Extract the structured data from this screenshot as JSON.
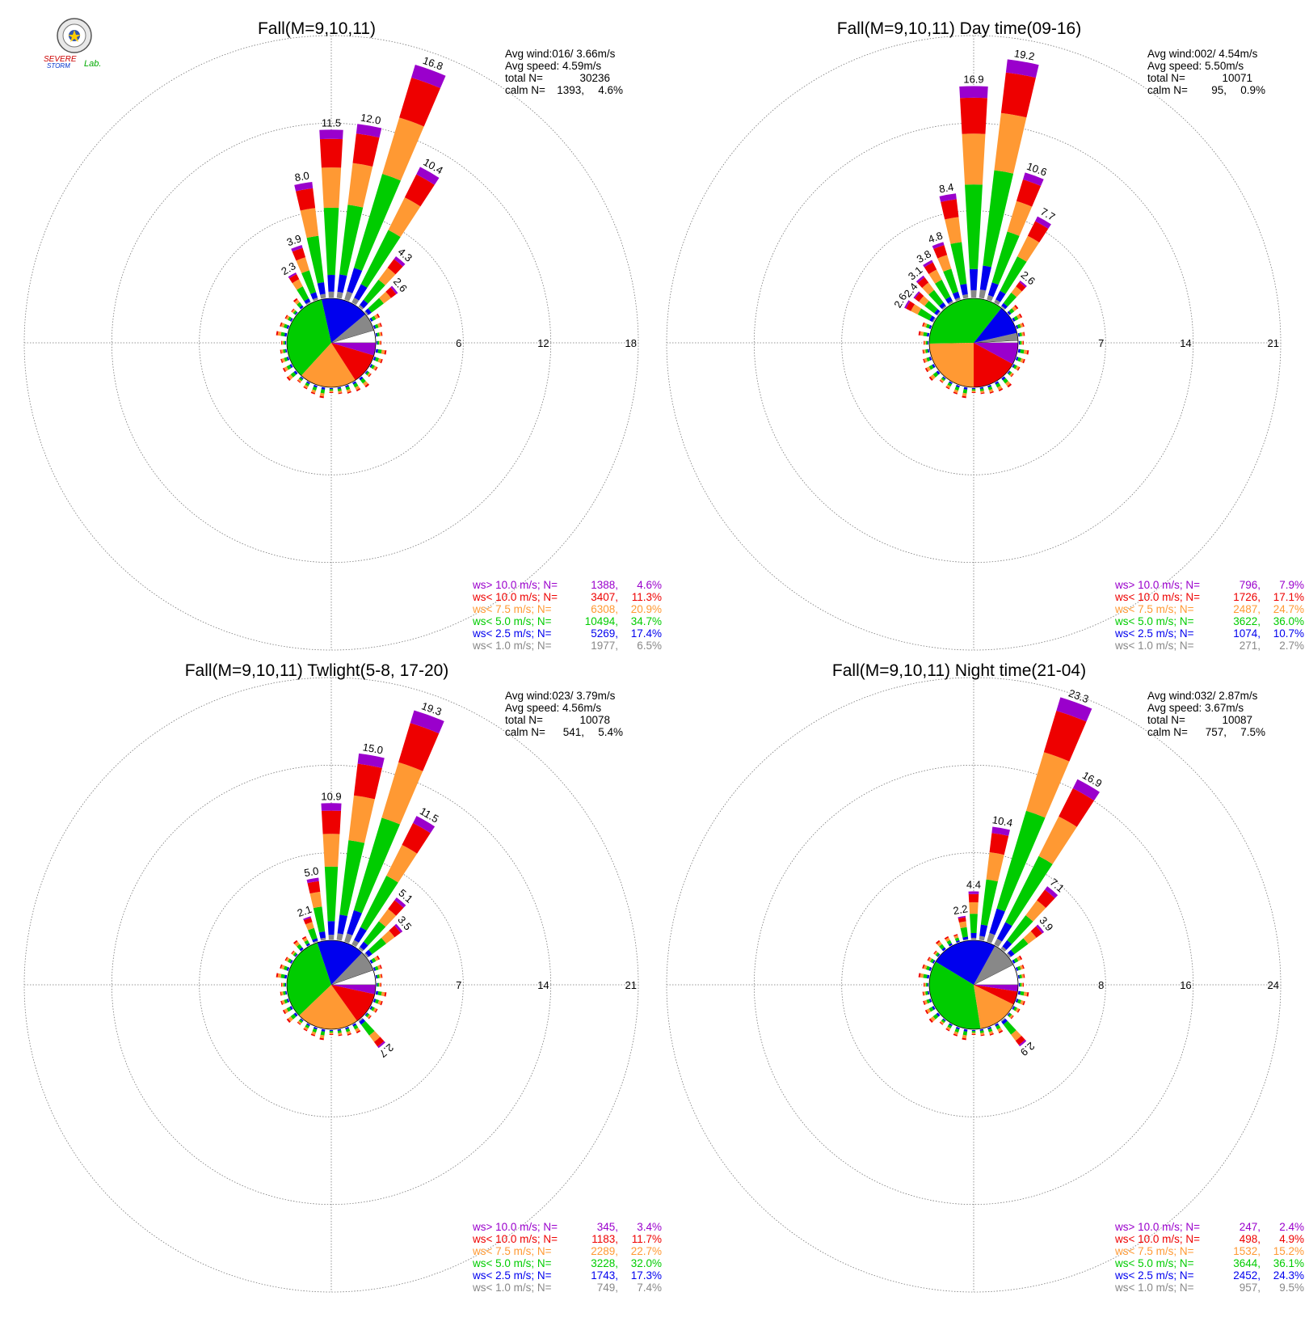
{
  "logo": {
    "text_top": "SEVERE",
    "text_mid": "STORM",
    "text_lab": "Lab."
  },
  "legend_labels": [
    "ws> 10.0 m/s; N=",
    "ws< 10.0 m/s; N=",
    "ws<  7.5 m/s; N=",
    "ws<  5.0 m/s; N=",
    "ws<  2.5 m/s; N=",
    "ws<  1.0 m/s; N="
  ],
  "bin_colors": [
    "#9a00cc",
    "#ee0000",
    "#ff9933",
    "#00cc00",
    "#0000ee",
    "#888888"
  ],
  "stat_labels": {
    "avg_wind": "Avg wind:",
    "avg_speed": "Avg speed:",
    "total": "total N=",
    "calm": "calm N="
  },
  "chart_data": [
    {
      "type": "polar-bar",
      "title": "Fall(M=9,10,11)",
      "rlim": [
        0,
        18
      ],
      "rings": [
        6,
        12,
        18
      ],
      "ring_labels": [
        "6",
        "12",
        "18"
      ],
      "stats": {
        "avg_wind": "016/ 3.66m/s",
        "avg_speed": "4.59m/s",
        "total_n": "30236",
        "calm_n": "1393,",
        "calm_pct": "4.6%"
      },
      "legend": [
        {
          "n": "1388,",
          "pct": "4.6%"
        },
        {
          "n": "3407,",
          "pct": "11.3%"
        },
        {
          "n": "6308,",
          "pct": "20.9%"
        },
        {
          "n": "10494,",
          "pct": "34.7%"
        },
        {
          "n": "5269,",
          "pct": "17.4%"
        },
        {
          "n": "1977,",
          "pct": "6.5%"
        }
      ],
      "pie": [
        6.5,
        17.4,
        34.7,
        20.9,
        11.3,
        4.6
      ],
      "bars": [
        {
          "dir": 330,
          "total": 2.3,
          "label": "2.3"
        },
        {
          "dir": 340,
          "total": 3.9,
          "label": "3.9"
        },
        {
          "dir": 350,
          "total": 8.0,
          "label": "8.0"
        },
        {
          "dir": 0,
          "total": 11.5,
          "label": "11.5"
        },
        {
          "dir": 10,
          "total": 12.0,
          "label": "12.0"
        },
        {
          "dir": 20,
          "total": 16.8,
          "label": "16.8"
        },
        {
          "dir": 30,
          "total": 10.4,
          "label": "10.4"
        },
        {
          "dir": 40,
          "total": 4.3,
          "label": "4.3"
        },
        {
          "dir": 50,
          "total": 2.6,
          "label": "2.6"
        }
      ]
    },
    {
      "type": "polar-bar",
      "title": "Fall(M=9,10,11) Day time(09-16)",
      "rlim": [
        0,
        21
      ],
      "rings": [
        7,
        14,
        21
      ],
      "ring_labels": [
        "7",
        "14",
        "21"
      ],
      "stats": {
        "avg_wind": "002/ 4.54m/s",
        "avg_speed": "5.50m/s",
        "total_n": "10071",
        "calm_n": "95,",
        "calm_pct": "0.9%"
      },
      "legend": [
        {
          "n": "796,",
          "pct": "7.9%"
        },
        {
          "n": "1726,",
          "pct": "17.1%"
        },
        {
          "n": "2487,",
          "pct": "24.7%"
        },
        {
          "n": "3622,",
          "pct": "36.0%"
        },
        {
          "n": "1074,",
          "pct": "10.7%"
        },
        {
          "n": "271,",
          "pct": "2.7%"
        }
      ],
      "pie": [
        2.7,
        10.7,
        36.0,
        24.7,
        17.1,
        7.9
      ],
      "bars": [
        {
          "dir": 300,
          "total": 2.6,
          "label": "2.6"
        },
        {
          "dir": 310,
          "total": 2.4,
          "label": "2.4"
        },
        {
          "dir": 320,
          "total": 3.1,
          "label": "3.1"
        },
        {
          "dir": 330,
          "total": 3.8,
          "label": "3.8"
        },
        {
          "dir": 340,
          "total": 4.8,
          "label": "4.8"
        },
        {
          "dir": 350,
          "total": 8.4,
          "label": "8.4"
        },
        {
          "dir": 0,
          "total": 16.9,
          "label": "16.9"
        },
        {
          "dir": 10,
          "total": 19.2,
          "label": "19.2"
        },
        {
          "dir": 20,
          "total": 10.6,
          "label": "10.6"
        },
        {
          "dir": 30,
          "total": 7.7,
          "label": "7.7"
        },
        {
          "dir": 40,
          "total": 2.6,
          "label": "2.6"
        }
      ]
    },
    {
      "type": "polar-bar",
      "title": "Fall(M=9,10,11) Twlight(5-8, 17-20)",
      "rlim": [
        0,
        21
      ],
      "rings": [
        7,
        14,
        21
      ],
      "ring_labels": [
        "7",
        "14",
        "21"
      ],
      "stats": {
        "avg_wind": "023/ 3.79m/s",
        "avg_speed": "4.56m/s",
        "total_n": "10078",
        "calm_n": "541,",
        "calm_pct": "5.4%"
      },
      "legend": [
        {
          "n": "345,",
          "pct": "3.4%"
        },
        {
          "n": "1183,",
          "pct": "11.7%"
        },
        {
          "n": "2289,",
          "pct": "22.7%"
        },
        {
          "n": "3228,",
          "pct": "32.0%"
        },
        {
          "n": "1743,",
          "pct": "17.3%"
        },
        {
          "n": "749,",
          "pct": "7.4%"
        }
      ],
      "pie": [
        7.4,
        17.3,
        32.0,
        22.7,
        11.7,
        3.4
      ],
      "bars": [
        {
          "dir": 340,
          "total": 2.1,
          "label": "2.1"
        },
        {
          "dir": 350,
          "total": 5.0,
          "label": "5.0"
        },
        {
          "dir": 0,
          "total": 10.9,
          "label": "10.9"
        },
        {
          "dir": 10,
          "total": 15.0,
          "label": "15.0"
        },
        {
          "dir": 20,
          "total": 19.3,
          "label": "19.3"
        },
        {
          "dir": 30,
          "total": 11.5,
          "label": "11.5"
        },
        {
          "dir": 40,
          "total": 5.1,
          "label": "5.1"
        },
        {
          "dir": 50,
          "total": 3.5,
          "label": "3.5"
        },
        {
          "dir": 140,
          "total": 2.7,
          "label": "2.7"
        }
      ]
    },
    {
      "type": "polar-bar",
      "title": "Fall(M=9,10,11) Night time(21-04)",
      "rlim": [
        0,
        24
      ],
      "rings": [
        8,
        16,
        24
      ],
      "ring_labels": [
        "8",
        "16",
        "24"
      ],
      "stats": {
        "avg_wind": "032/ 2.87m/s",
        "avg_speed": "3.67m/s",
        "total_n": "10087",
        "calm_n": "757,",
        "calm_pct": "7.5%"
      },
      "legend": [
        {
          "n": "247,",
          "pct": "2.4%"
        },
        {
          "n": "498,",
          "pct": "4.9%"
        },
        {
          "n": "1532,",
          "pct": "15.2%"
        },
        {
          "n": "3644,",
          "pct": "36.1%"
        },
        {
          "n": "2452,",
          "pct": "24.3%"
        },
        {
          "n": "957,",
          "pct": "9.5%"
        }
      ],
      "pie": [
        9.5,
        24.3,
        36.1,
        15.2,
        4.9,
        2.4
      ],
      "bars": [
        {
          "dir": 350,
          "total": 2.2,
          "label": "2.2"
        },
        {
          "dir": 0,
          "total": 4.4,
          "label": "4.4"
        },
        {
          "dir": 10,
          "total": 10.4,
          "label": "10.4"
        },
        {
          "dir": 20,
          "total": 23.3,
          "label": "23.3"
        },
        {
          "dir": 30,
          "total": 16.9,
          "label": "16.9"
        },
        {
          "dir": 40,
          "total": 7.1,
          "label": "7.1"
        },
        {
          "dir": 50,
          "total": 3.9,
          "label": "3.9"
        },
        {
          "dir": 140,
          "total": 2.9,
          "label": "2.9"
        }
      ]
    }
  ]
}
